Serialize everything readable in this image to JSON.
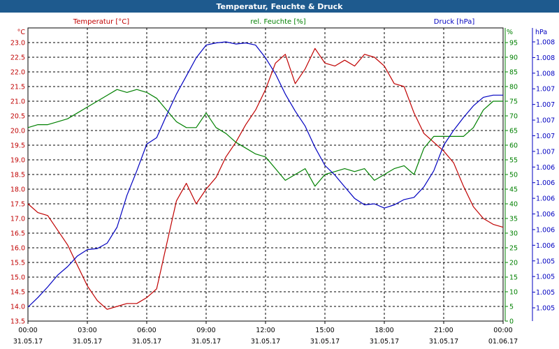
{
  "window": {
    "title": "Temperatur, Feuchte & Druck"
  },
  "colors": {
    "titlebar": "#1e5a8e",
    "temp": "#c00000",
    "hum": "#008000",
    "press": "#0000c0",
    "grid": "#000000",
    "axis_text": "#000000"
  },
  "chart_data": {
    "type": "line",
    "title": "Temperatur, Feuchte & Druck",
    "grid": true,
    "legend": "top",
    "x": {
      "ticks": [
        {
          "time": "00:00",
          "date": "31.05.17"
        },
        {
          "time": "03:00",
          "date": "31.05.17"
        },
        {
          "time": "06:00",
          "date": "31.05.17"
        },
        {
          "time": "09:00",
          "date": "31.05.17"
        },
        {
          "time": "12:00",
          "date": "31.05.17"
        },
        {
          "time": "15:00",
          "date": "31.05.17"
        },
        {
          "time": "18:00",
          "date": "31.05.17"
        },
        {
          "time": "21:00",
          "date": "31.05.17"
        },
        {
          "time": "00:00",
          "date": "01.06.17"
        }
      ]
    },
    "axes": {
      "temperature": {
        "unit": "°C",
        "range": [
          13.5,
          23.5
        ],
        "ticks": [
          "13.5",
          "14.0",
          "14.5",
          "15.0",
          "15.5",
          "16.0",
          "16.5",
          "17.0",
          "17.5",
          "18.0",
          "18.5",
          "19.0",
          "19.5",
          "20.0",
          "20.5",
          "21.0",
          "21.5",
          "22.0",
          "22.5",
          "23.0"
        ]
      },
      "humidity": {
        "unit": "%",
        "range": [
          0,
          100
        ],
        "ticks": [
          "0",
          "5",
          "10",
          "15",
          "20",
          "25",
          "30",
          "35",
          "40",
          "45",
          "50",
          "55",
          "60",
          "65",
          "70",
          "75",
          "80",
          "85",
          "90",
          "95"
        ]
      },
      "pressure": {
        "unit": "hPa",
        "ticks": [
          "1.005",
          "1.005",
          "1.005",
          "1.005",
          "1.006",
          "1.006",
          "1.006",
          "1.006",
          "1.006",
          "1.006",
          "1.007",
          "1.007",
          "1.007",
          "1.007",
          "1.007",
          "1.008",
          "1.008",
          "1.008"
        ]
      }
    },
    "series": [
      {
        "name": "Temperatur [°C]",
        "axis": "temperature",
        "hours": [
          0,
          0.5,
          1,
          1.5,
          2,
          2.5,
          3,
          3.5,
          4,
          4.5,
          5,
          5.5,
          6,
          6.5,
          7,
          7.5,
          8,
          8.5,
          9,
          9.5,
          10,
          10.5,
          11,
          11.5,
          12,
          12.5,
          13,
          13.5,
          14,
          14.5,
          15,
          15.5,
          16,
          16.5,
          17,
          17.5,
          18,
          18.5,
          19,
          19.5,
          20,
          20.5,
          21,
          21.5,
          22,
          22.5,
          23,
          23.5,
          24
        ],
        "values": [
          17.5,
          17.2,
          17.1,
          16.6,
          16.1,
          15.4,
          14.7,
          14.2,
          13.9,
          14.0,
          14.1,
          14.1,
          14.3,
          14.6,
          16.1,
          17.6,
          18.2,
          17.5,
          18.0,
          18.4,
          19.1,
          19.6,
          20.2,
          20.7,
          21.4,
          22.3,
          22.6,
          21.6,
          22.1,
          22.8,
          22.3,
          22.2,
          22.4,
          22.2,
          22.6,
          22.5,
          22.2,
          21.6,
          21.5,
          20.6,
          19.9,
          19.6,
          19.3,
          18.9,
          18.1,
          17.4,
          17.0,
          16.8,
          16.7
        ]
      },
      {
        "name": "rel. Feuchte [%]",
        "axis": "humidity",
        "hours": [
          0,
          0.5,
          1,
          1.5,
          2,
          2.5,
          3,
          3.5,
          4,
          4.5,
          5,
          5.5,
          6,
          6.5,
          7,
          7.5,
          8,
          8.5,
          9,
          9.5,
          10,
          10.5,
          11,
          11.5,
          12,
          12.5,
          13,
          13.5,
          14,
          14.5,
          15,
          15.5,
          16,
          16.5,
          17,
          17.5,
          18,
          18.5,
          19,
          19.5,
          20,
          20.5,
          21,
          21.5,
          22,
          22.5,
          23,
          23.5,
          24
        ],
        "values": [
          66,
          67,
          67,
          68,
          69,
          71,
          73,
          75,
          77,
          79,
          78,
          79,
          78,
          76,
          72,
          68,
          66,
          66,
          71,
          66,
          64,
          61,
          59,
          57,
          56,
          52,
          48,
          50,
          52,
          46,
          50,
          51,
          52,
          51,
          52,
          48,
          50,
          52,
          53,
          50,
          59,
          63,
          63,
          63,
          63,
          66,
          72,
          75,
          75
        ]
      },
      {
        "name": "Druck [hPa]",
        "axis": "pressure",
        "hours": [
          0,
          0.5,
          1,
          1.5,
          2,
          2.5,
          3,
          3.5,
          4,
          4.5,
          5,
          5.5,
          6,
          6.5,
          7,
          7.5,
          8,
          8.5,
          9,
          9.5,
          10,
          10.5,
          11,
          11.5,
          12,
          12.5,
          13,
          13.5,
          14,
          14.5,
          15,
          15.5,
          16,
          16.5,
          17,
          17.5,
          18,
          18.5,
          19,
          19.5,
          20,
          20.5,
          21,
          21.5,
          22,
          22.5,
          23,
          23.5,
          24
        ],
        "values": [
          1005.0,
          1005.09,
          1005.19,
          1005.3,
          1005.38,
          1005.48,
          1005.54,
          1005.55,
          1005.6,
          1005.75,
          1006.05,
          1006.28,
          1006.53,
          1006.59,
          1006.8,
          1007.0,
          1007.17,
          1007.34,
          1007.46,
          1007.48,
          1007.49,
          1007.47,
          1007.48,
          1007.46,
          1007.34,
          1007.19,
          1007.0,
          1006.84,
          1006.7,
          1006.5,
          1006.33,
          1006.24,
          1006.13,
          1006.02,
          1005.96,
          1005.97,
          1005.93,
          1005.96,
          1006.01,
          1006.03,
          1006.13,
          1006.28,
          1006.52,
          1006.66,
          1006.78,
          1006.89,
          1006.97,
          1006.99,
          1006.99
        ]
      }
    ]
  }
}
